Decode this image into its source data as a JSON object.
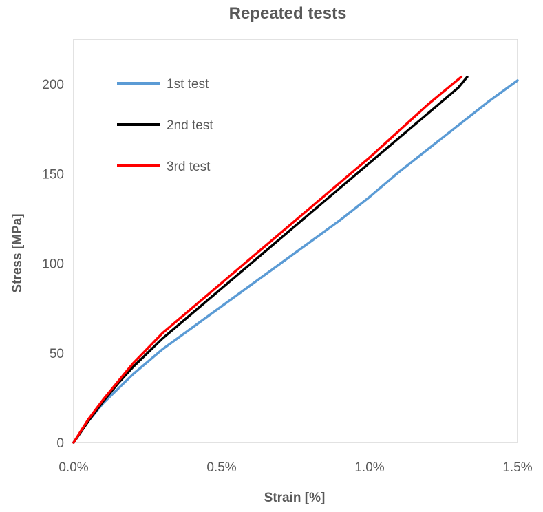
{
  "chart_data": {
    "type": "line",
    "title": "Repeated tests",
    "xlabel": "Strain [%]",
    "ylabel": "Stress [MPa]",
    "xlim": [
      0.0,
      1.5
    ],
    "ylim": [
      0,
      225
    ],
    "x_ticks": [
      0.0,
      0.5,
      1.0,
      1.5
    ],
    "x_tick_labels": [
      "0.0%",
      "0.5%",
      "1.0%",
      "1.5%"
    ],
    "y_ticks": [
      0,
      50,
      100,
      150,
      200
    ],
    "y_tick_labels": [
      "0",
      "50",
      "100",
      "150",
      "200"
    ],
    "grid": false,
    "legend_position": "top-left",
    "series": [
      {
        "name": "1st test",
        "color": "#5b9bd5",
        "x": [
          0.0,
          0.05,
          0.1,
          0.15,
          0.2,
          0.3,
          0.4,
          0.5,
          0.6,
          0.7,
          0.8,
          0.9,
          1.0,
          1.1,
          1.2,
          1.3,
          1.4,
          1.5
        ],
        "y": [
          0,
          12,
          22,
          30,
          38,
          52,
          64,
          76,
          88,
          100,
          112,
          124,
          137,
          151,
          164,
          177,
          190,
          202
        ]
      },
      {
        "name": "2nd test",
        "color": "#000000",
        "x": [
          0.0,
          0.05,
          0.1,
          0.15,
          0.2,
          0.3,
          0.4,
          0.5,
          0.6,
          0.7,
          0.8,
          0.9,
          1.0,
          1.1,
          1.2,
          1.3,
          1.33
        ],
        "y": [
          0,
          12,
          23,
          33,
          42,
          58,
          72,
          86,
          100,
          114,
          128,
          142,
          156,
          170,
          184,
          198,
          204
        ]
      },
      {
        "name": "3rd test",
        "color": "#ff0000",
        "x": [
          0.0,
          0.05,
          0.1,
          0.15,
          0.2,
          0.3,
          0.4,
          0.5,
          0.6,
          0.7,
          0.8,
          0.9,
          1.0,
          1.1,
          1.2,
          1.31
        ],
        "y": [
          0,
          13,
          24,
          34,
          44,
          61,
          75,
          89,
          103,
          117,
          131,
          145,
          159,
          174,
          189,
          204
        ]
      }
    ]
  }
}
